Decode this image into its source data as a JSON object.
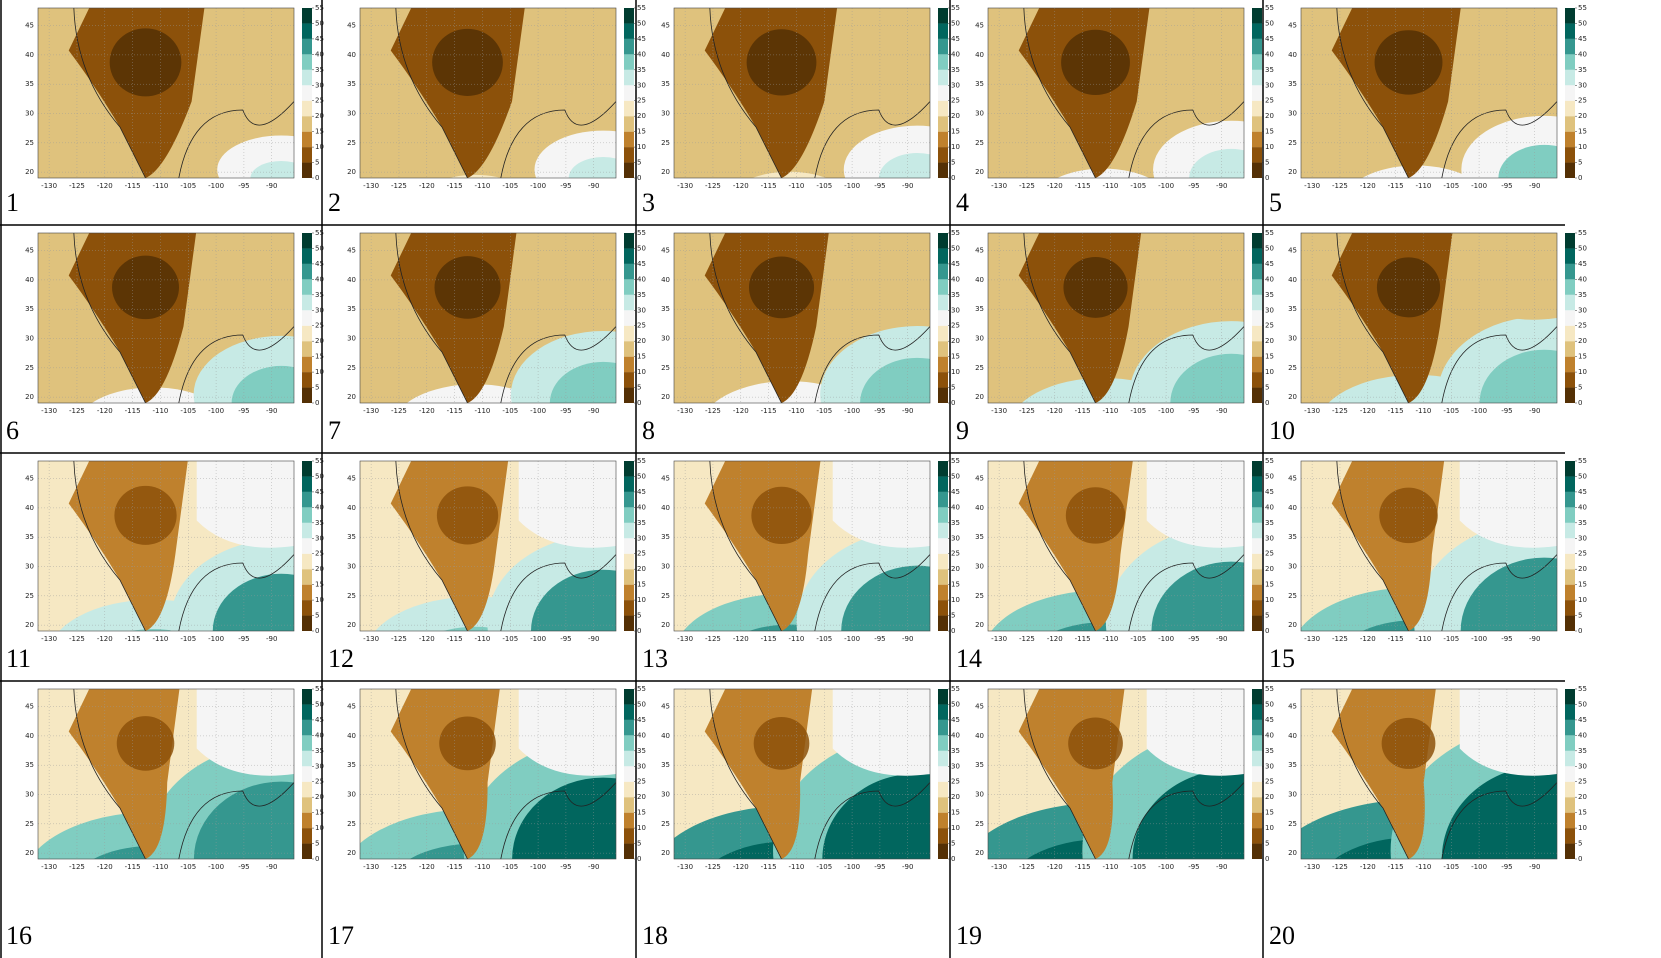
{
  "panels": [
    {
      "label": "1"
    },
    {
      "label": "2"
    },
    {
      "label": "3"
    },
    {
      "label": "4"
    },
    {
      "label": "5"
    },
    {
      "label": "6"
    },
    {
      "label": "7"
    },
    {
      "label": "8"
    },
    {
      "label": "9"
    },
    {
      "label": "10"
    },
    {
      "label": "11"
    },
    {
      "label": "12"
    },
    {
      "label": "13"
    },
    {
      "label": "14"
    },
    {
      "label": "15"
    },
    {
      "label": "16"
    },
    {
      "label": "17"
    },
    {
      "label": "18"
    },
    {
      "label": "19"
    },
    {
      "label": "20"
    }
  ],
  "map": {
    "lat_ticks": [
      20,
      25,
      30,
      35,
      40,
      45
    ],
    "lon_ticks": [
      -130,
      -125,
      -120,
      -115,
      -110,
      -105,
      -100,
      -95,
      -90
    ],
    "colorbar": {
      "ticks": [
        0,
        5,
        10,
        15,
        20,
        25,
        30,
        35,
        40,
        45,
        50,
        55
      ],
      "colors": [
        "#543005",
        "#8c510a",
        "#bf812d",
        "#dfc27d",
        "#f6e8c3",
        "#f5f5f5",
        "#c7eae5",
        "#80cdc1",
        "#35978f",
        "#01665e",
        "#003c30"
      ]
    }
  }
}
